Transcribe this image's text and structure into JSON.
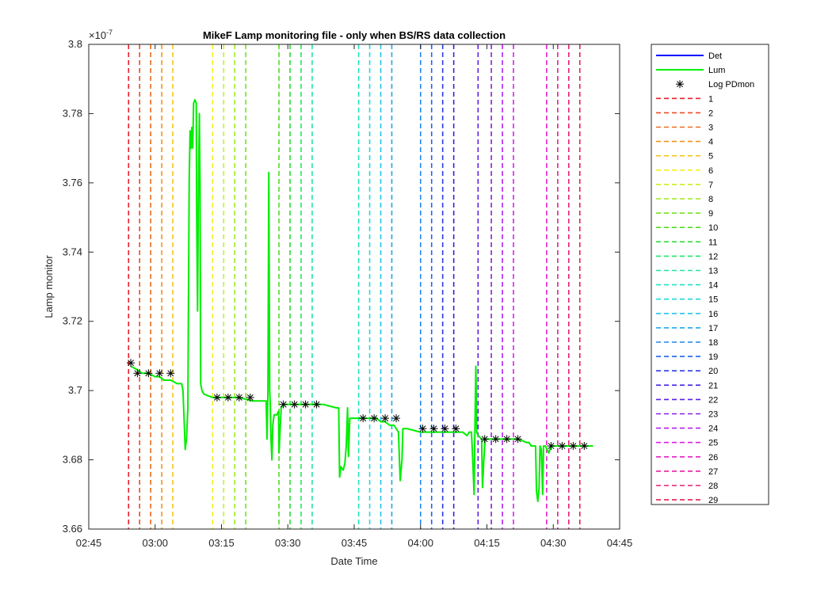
{
  "chart_data": {
    "type": "line",
    "title": "MikeF Lamp monitoring file - only when BS/RS data collection",
    "xlabel": "Date Time",
    "ylabel": "Lamp monitor",
    "y_exponent_label": "×10",
    "y_exponent_power": "-7",
    "xlim_minutes": [
      165,
      285
    ],
    "ylim": [
      3.66,
      3.8
    ],
    "x_ticks": [
      {
        "minutes": 165,
        "label": "02:45"
      },
      {
        "minutes": 180,
        "label": "03:00"
      },
      {
        "minutes": 195,
        "label": "03:15"
      },
      {
        "minutes": 210,
        "label": "03:30"
      },
      {
        "minutes": 225,
        "label": "03:45"
      },
      {
        "minutes": 240,
        "label": "04:00"
      },
      {
        "minutes": 255,
        "label": "04:15"
      },
      {
        "minutes": 270,
        "label": "04:30"
      },
      {
        "minutes": 285,
        "label": "04:45"
      }
    ],
    "y_ticks": [
      {
        "value": 3.66,
        "label": "3.66"
      },
      {
        "value": 3.68,
        "label": "3.68"
      },
      {
        "value": 3.7,
        "label": "3.7"
      },
      {
        "value": 3.72,
        "label": "3.72"
      },
      {
        "value": 3.74,
        "label": "3.74"
      },
      {
        "value": 3.76,
        "label": "3.76"
      },
      {
        "value": 3.78,
        "label": "3.78"
      },
      {
        "value": 3.8,
        "label": "3.8"
      }
    ],
    "legend_location": "outside-right",
    "series": [
      {
        "name": "Det",
        "color": "#0000ff",
        "style": "solid",
        "points": []
      },
      {
        "name": "Lum",
        "color": "#00ee00",
        "style": "solid",
        "points": [
          [
            174.5,
            3.707
          ],
          [
            176,
            3.706
          ],
          [
            177,
            3.705
          ],
          [
            178.5,
            3.705
          ],
          [
            180,
            3.704
          ],
          [
            181,
            3.704
          ],
          [
            182,
            3.703
          ],
          [
            183.5,
            3.703
          ],
          [
            185,
            3.702
          ],
          [
            186,
            3.702
          ],
          [
            186.3,
            3.7
          ],
          [
            186.6,
            3.69
          ],
          [
            186.8,
            3.683
          ],
          [
            187.1,
            3.686
          ],
          [
            187.4,
            3.695
          ],
          [
            187.7,
            3.76
          ],
          [
            187.9,
            3.775
          ],
          [
            188.1,
            3.77
          ],
          [
            188.3,
            3.776
          ],
          [
            188.5,
            3.77
          ],
          [
            188.7,
            3.783
          ],
          [
            189,
            3.784
          ],
          [
            189.3,
            3.783
          ],
          [
            189.4,
            3.75
          ],
          [
            189.6,
            3.723
          ],
          [
            189.8,
            3.76
          ],
          [
            190,
            3.78
          ],
          [
            190.15,
            3.76
          ],
          [
            190.3,
            3.702
          ],
          [
            190.6,
            3.7
          ],
          [
            191,
            3.699
          ],
          [
            193,
            3.698
          ],
          [
            196,
            3.698
          ],
          [
            199,
            3.698
          ],
          [
            202,
            3.697
          ],
          [
            204,
            3.697
          ],
          [
            205.1,
            3.697
          ],
          [
            205.3,
            3.686
          ],
          [
            205.5,
            3.7
          ],
          [
            205.7,
            3.763
          ],
          [
            205.9,
            3.7
          ],
          [
            206,
            3.697
          ],
          [
            206.2,
            3.686
          ],
          [
            206.4,
            3.68
          ],
          [
            206.6,
            3.69
          ],
          [
            206.9,
            3.693
          ],
          [
            207.5,
            3.693
          ],
          [
            207.9,
            3.694
          ],
          [
            208,
            3.682
          ],
          [
            208.5,
            3.695
          ],
          [
            209,
            3.696
          ],
          [
            212,
            3.696
          ],
          [
            215,
            3.696
          ],
          [
            218,
            3.696
          ],
          [
            221,
            3.695
          ],
          [
            221.5,
            3.695
          ],
          [
            221.7,
            3.675
          ],
          [
            222,
            3.678
          ],
          [
            222.5,
            3.677
          ],
          [
            222.9,
            3.679
          ],
          [
            223.2,
            3.684
          ],
          [
            223.5,
            3.695
          ],
          [
            223.7,
            3.681
          ],
          [
            224,
            3.692
          ],
          [
            225,
            3.692
          ],
          [
            228,
            3.692
          ],
          [
            230,
            3.692
          ],
          [
            231,
            3.691
          ],
          [
            232,
            3.691
          ],
          [
            233,
            3.69
          ],
          [
            234,
            3.69
          ],
          [
            235,
            3.688
          ],
          [
            235.4,
            3.674
          ],
          [
            235.8,
            3.68
          ],
          [
            236,
            3.689
          ],
          [
            237,
            3.689
          ],
          [
            240,
            3.688
          ],
          [
            243,
            3.688
          ],
          [
            246,
            3.688
          ],
          [
            248,
            3.688
          ],
          [
            249.5,
            3.688
          ],
          [
            250.5,
            3.687
          ],
          [
            251,
            3.688
          ],
          [
            251.5,
            3.688
          ],
          [
            251.8,
            3.68
          ],
          [
            252.1,
            3.67
          ],
          [
            252.3,
            3.69
          ],
          [
            252.5,
            3.707
          ],
          [
            252.7,
            3.688
          ],
          [
            253,
            3.687
          ],
          [
            253.8,
            3.686
          ],
          [
            254,
            3.672
          ],
          [
            254.3,
            3.68
          ],
          [
            254.6,
            3.686
          ],
          [
            256,
            3.686
          ],
          [
            259,
            3.686
          ],
          [
            262,
            3.686
          ],
          [
            264,
            3.685
          ],
          [
            264.5,
            3.685
          ],
          [
            265,
            3.684
          ],
          [
            266,
            3.684
          ],
          [
            266.2,
            3.671
          ],
          [
            266.5,
            3.668
          ],
          [
            266.8,
            3.672
          ],
          [
            267,
            3.684
          ],
          [
            267.3,
            3.683
          ],
          [
            267.6,
            3.67
          ],
          [
            267.8,
            3.684
          ],
          [
            268.2,
            3.684
          ],
          [
            269,
            3.682
          ],
          [
            269.5,
            3.684
          ],
          [
            270,
            3.684
          ],
          [
            273,
            3.684
          ],
          [
            276,
            3.684
          ],
          [
            279,
            3.684
          ]
        ]
      },
      {
        "name": "Log PDmon",
        "color": "#000000",
        "style": "asterisk",
        "points": [
          [
            174.5,
            3.708
          ],
          [
            176,
            3.705
          ],
          [
            178.5,
            3.705
          ],
          [
            181,
            3.705
          ],
          [
            183.5,
            3.705
          ],
          [
            194,
            3.698
          ],
          [
            196.5,
            3.698
          ],
          [
            199,
            3.698
          ],
          [
            201.5,
            3.698
          ],
          [
            209,
            3.696
          ],
          [
            211.5,
            3.696
          ],
          [
            214,
            3.696
          ],
          [
            216.5,
            3.696
          ],
          [
            227,
            3.692
          ],
          [
            229.5,
            3.692
          ],
          [
            232,
            3.692
          ],
          [
            234.5,
            3.692
          ],
          [
            240.5,
            3.689
          ],
          [
            243,
            3.689
          ],
          [
            245.5,
            3.689
          ],
          [
            248,
            3.689
          ],
          [
            254.5,
            3.686
          ],
          [
            257,
            3.686
          ],
          [
            259.5,
            3.686
          ],
          [
            262,
            3.686
          ],
          [
            269.5,
            3.684
          ],
          [
            272,
            3.684
          ],
          [
            274.5,
            3.684
          ],
          [
            277,
            3.684
          ]
        ]
      }
    ],
    "markers": [
      {
        "label": "1",
        "minutes": 174.0,
        "color": "#e8202a"
      },
      {
        "label": "2",
        "minutes": 176.5,
        "color": "#ec4b22"
      },
      {
        "label": "3",
        "minutes": 179.0,
        "color": "#ee6a1c"
      },
      {
        "label": "4",
        "minutes": 181.5,
        "color": "#f29418"
      },
      {
        "label": "5",
        "minutes": 184.0,
        "color": "#f8c317"
      },
      {
        "label": "6",
        "minutes": 193.0,
        "color": "#f5f01a"
      },
      {
        "label": "7",
        "minutes": 195.5,
        "color": "#c8ef1c"
      },
      {
        "label": "8",
        "minutes": 198.0,
        "color": "#9ee81c"
      },
      {
        "label": "9",
        "minutes": 200.5,
        "color": "#74e31e"
      },
      {
        "label": "10",
        "minutes": 208.0,
        "color": "#4fdd1f"
      },
      {
        "label": "11",
        "minutes": 210.5,
        "color": "#28dc37"
      },
      {
        "label": "12",
        "minutes": 213.0,
        "color": "#1fe56a"
      },
      {
        "label": "13",
        "minutes": 215.5,
        "color": "#22e2a4"
      },
      {
        "label": "14",
        "minutes": 226.0,
        "color": "#1fe0c3"
      },
      {
        "label": "15",
        "minutes": 228.5,
        "color": "#1fd9da"
      },
      {
        "label": "16",
        "minutes": 231.0,
        "color": "#22c4e6"
      },
      {
        "label": "17",
        "minutes": 233.5,
        "color": "#1ea6ee"
      },
      {
        "label": "18",
        "minutes": 240.0,
        "color": "#1f86f2"
      },
      {
        "label": "19",
        "minutes": 242.5,
        "color": "#2162ef"
      },
      {
        "label": "20",
        "minutes": 245.0,
        "color": "#2a39e6"
      },
      {
        "label": "21",
        "minutes": 247.5,
        "color": "#3a1ee2"
      },
      {
        "label": "22",
        "minutes": 253.0,
        "color": "#5c1fe6"
      },
      {
        "label": "23",
        "minutes": 256.0,
        "color": "#8a1fea"
      },
      {
        "label": "24",
        "minutes": 258.5,
        "color": "#b41ff0"
      },
      {
        "label": "25",
        "minutes": 261.0,
        "color": "#db1fe8"
      },
      {
        "label": "26",
        "minutes": 268.5,
        "color": "#e81fc8"
      },
      {
        "label": "27",
        "minutes": 271.0,
        "color": "#e81f9e"
      },
      {
        "label": "28",
        "minutes": 273.5,
        "color": "#e81f76"
      },
      {
        "label": "29",
        "minutes": 276.0,
        "color": "#e81f4c"
      }
    ]
  }
}
